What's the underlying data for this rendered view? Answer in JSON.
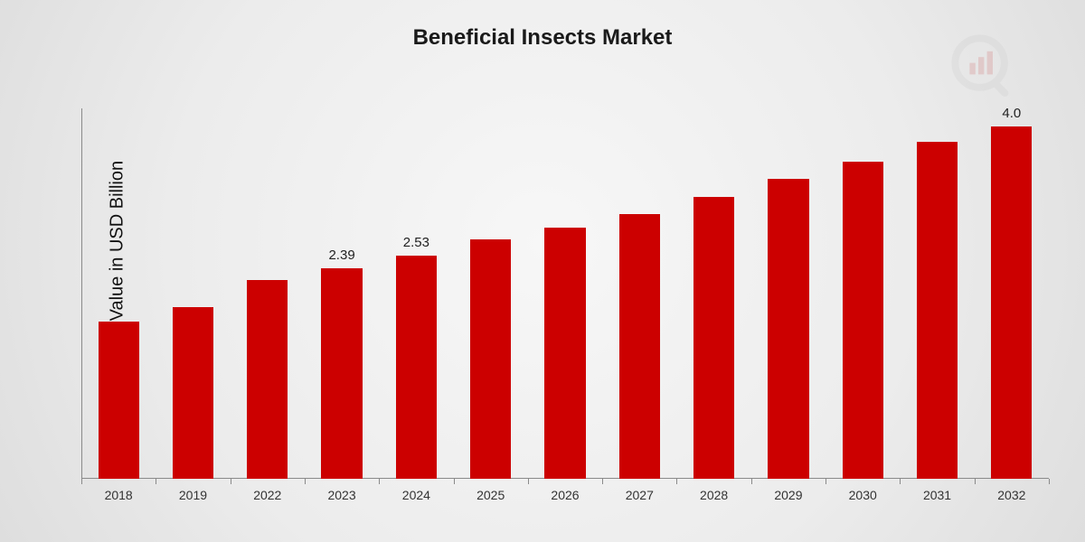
{
  "chart": {
    "type": "bar",
    "title": "Beneficial Insects Market",
    "title_fontsize": 24,
    "title_color": "#1a1a1a",
    "ylabel": "Market Value in USD Billion",
    "ylabel_fontsize": 20,
    "ylabel_color": "#111111",
    "background_gradient": [
      "#f7f7f7",
      "#ececec",
      "#dedede"
    ],
    "axis_color": "#8a8a8a",
    "bar_color": "#cc0000",
    "bar_width_ratio": 0.55,
    "value_label_fontsize": 15,
    "value_label_color": "#222222",
    "tick_label_fontsize": 14,
    "tick_label_color": "#333333",
    "logo_opacity": 0.18,
    "logo_colors": {
      "ring": "#bfbfbf",
      "bars": "#c94a4a",
      "handle": "#bfbfbf"
    },
    "ymin": 0,
    "ymax": 4.2,
    "categories": [
      "2018",
      "2019",
      "2022",
      "2023",
      "2024",
      "2025",
      "2026",
      "2027",
      "2028",
      "2029",
      "2030",
      "2031",
      "2032"
    ],
    "values": [
      1.78,
      1.95,
      2.25,
      2.39,
      2.53,
      2.71,
      2.85,
      3.0,
      3.2,
      3.4,
      3.6,
      3.82,
      4.0
    ],
    "value_labels_shown": {
      "2023": "2.39",
      "2024": "2.53",
      "2032": "4.0"
    }
  }
}
